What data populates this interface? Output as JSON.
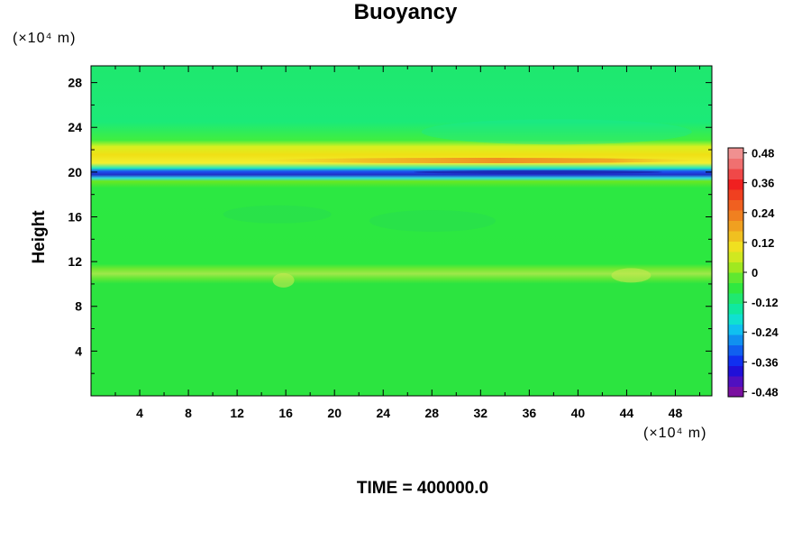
{
  "chart_data": {
    "type": "heatmap",
    "title": "Buoyancy",
    "ylabel": "Height",
    "x_unit": "(×10⁴ m)",
    "y_unit": "(×10⁴ m)",
    "xlim": [
      0,
      51
    ],
    "ylim": [
      0,
      29.5
    ],
    "x_ticks": [
      "4",
      "8",
      "12",
      "16",
      "20",
      "24",
      "28",
      "32",
      "36",
      "40",
      "44",
      "48"
    ],
    "y_ticks": [
      "4",
      "8",
      "12",
      "16",
      "20",
      "24",
      "28"
    ],
    "colorbar": {
      "range": [
        -0.5,
        0.5
      ],
      "tick_labels": [
        "0.48",
        "0.36",
        "0.24",
        "0.12",
        "0",
        "-0.12",
        "-0.24",
        "-0.36",
        "-0.48"
      ],
      "tick_values": [
        0.48,
        0.36,
        0.24,
        0.12,
        0,
        -0.12,
        -0.24,
        -0.36,
        -0.48
      ]
    },
    "field_description_bands": [
      {
        "height": 20.2,
        "buoyancy": -0.4
      },
      {
        "height": 20.8,
        "buoyancy": 0.0
      },
      {
        "height": 21.3,
        "buoyancy": 0.25
      },
      {
        "height": 21.8,
        "buoyancy": 0.12
      },
      {
        "height": 11.2,
        "buoyancy": 0.08
      }
    ],
    "background_value": -0.02,
    "time_label": "TIME = 400000.0"
  },
  "colors": {
    "background_field": "#22e84a",
    "upper_field": "#19ea73"
  }
}
